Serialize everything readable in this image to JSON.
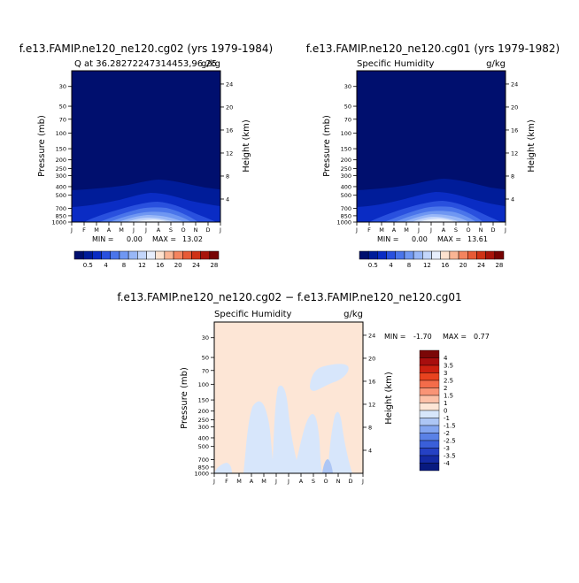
{
  "chart_data": [
    {
      "type": "contour",
      "case_title": "f.e13.FAMIP.ne120_ne120.cg02 (yrs 1979-1984)",
      "left_title": "Q at 36.28272247314453,96.25",
      "right_title": "g/kg",
      "ylabel_left": "Pressure (mb)",
      "ylabel_right": "Height (km)",
      "x_ticks": [
        "J",
        "F",
        "M",
        "A",
        "M",
        "J",
        "J",
        "A",
        "S",
        "O",
        "N",
        "D",
        "J"
      ],
      "pressure_ticks": [
        "30",
        "50",
        "70",
        "100",
        "150",
        "200",
        "250",
        "300",
        "400",
        "500",
        "700",
        "850",
        "1000"
      ],
      "height_ticks": [
        "24",
        "20",
        "16",
        "12",
        "8",
        "4"
      ],
      "min_label": "MIN =",
      "min_value": "0.00",
      "max_label": "MAX =",
      "max_value": "13.02",
      "colorbar_labels": [
        "0.5",
        "4",
        "8",
        "12",
        "16",
        "20",
        "24",
        "28"
      ],
      "colorbar_orientation": "horizontal"
    },
    {
      "type": "contour",
      "case_title": "f.e13.FAMIP.ne120_ne120.cg01 (yrs 1979-1982)",
      "left_title": "Specific Humidity",
      "right_title": "g/kg",
      "ylabel_left": "Pressure (mb)",
      "ylabel_right": "Height (km)",
      "x_ticks": [
        "J",
        "F",
        "M",
        "A",
        "M",
        "J",
        "J",
        "A",
        "S",
        "O",
        "N",
        "D",
        "J"
      ],
      "pressure_ticks": [
        "30",
        "50",
        "70",
        "100",
        "150",
        "200",
        "250",
        "300",
        "400",
        "500",
        "700",
        "850",
        "1000"
      ],
      "height_ticks": [
        "24",
        "20",
        "16",
        "12",
        "8",
        "4"
      ],
      "min_label": "MIN =",
      "min_value": "0.00",
      "max_label": "MAX =",
      "max_value": "13.61",
      "colorbar_labels": [
        "0.5",
        "4",
        "8",
        "12",
        "16",
        "20",
        "24",
        "28"
      ],
      "colorbar_orientation": "horizontal"
    },
    {
      "type": "contour",
      "case_title": "f.e13.FAMIP.ne120_ne120.cg02 − f.e13.FAMIP.ne120_ne120.cg01",
      "left_title": "Specific Humidity",
      "right_title": "g/kg",
      "ylabel_left": "Pressure (mb)",
      "ylabel_right": "Height (km)",
      "x_ticks": [
        "J",
        "F",
        "M",
        "A",
        "M",
        "J",
        "J",
        "A",
        "S",
        "O",
        "N",
        "D",
        "J"
      ],
      "pressure_ticks": [
        "30",
        "50",
        "70",
        "100",
        "150",
        "200",
        "250",
        "300",
        "400",
        "500",
        "700",
        "850",
        "1000"
      ],
      "height_ticks": [
        "24",
        "20",
        "16",
        "12",
        "8",
        "4"
      ],
      "min_label": "MIN =",
      "min_value": "-1.70",
      "max_label": "MAX =",
      "max_value": "0.77",
      "colorbar_labels": [
        "4",
        "3.5",
        "3",
        "2.5",
        "2",
        "1.5",
        "1",
        "0",
        "-1",
        "-1.5",
        "-2",
        "-2.5",
        "-3",
        "-3.5",
        "-4"
      ],
      "colorbar_orientation": "vertical"
    }
  ],
  "colors": {
    "q_scale": [
      "#000f6e",
      "#001c99",
      "#0a2cc4",
      "#2950de",
      "#4a75ea",
      "#6f97f2",
      "#98b7f7",
      "#c3d6fb",
      "#e7eefc",
      "#fde2cf",
      "#fab594",
      "#f4845f",
      "#e75a36",
      "#cf3216",
      "#a8140a",
      "#770303"
    ],
    "diff_scale": [
      "#7b0707",
      "#a80e0e",
      "#cc2010",
      "#e8431f",
      "#f46c4a",
      "#f99476",
      "#fcc0a7",
      "#fde6d6",
      "#d7e6fb",
      "#adc6f5",
      "#83a5f0",
      "#5a81e6",
      "#3a5fd9",
      "#2541c4",
      "#142aa4",
      "#081a80"
    ]
  }
}
